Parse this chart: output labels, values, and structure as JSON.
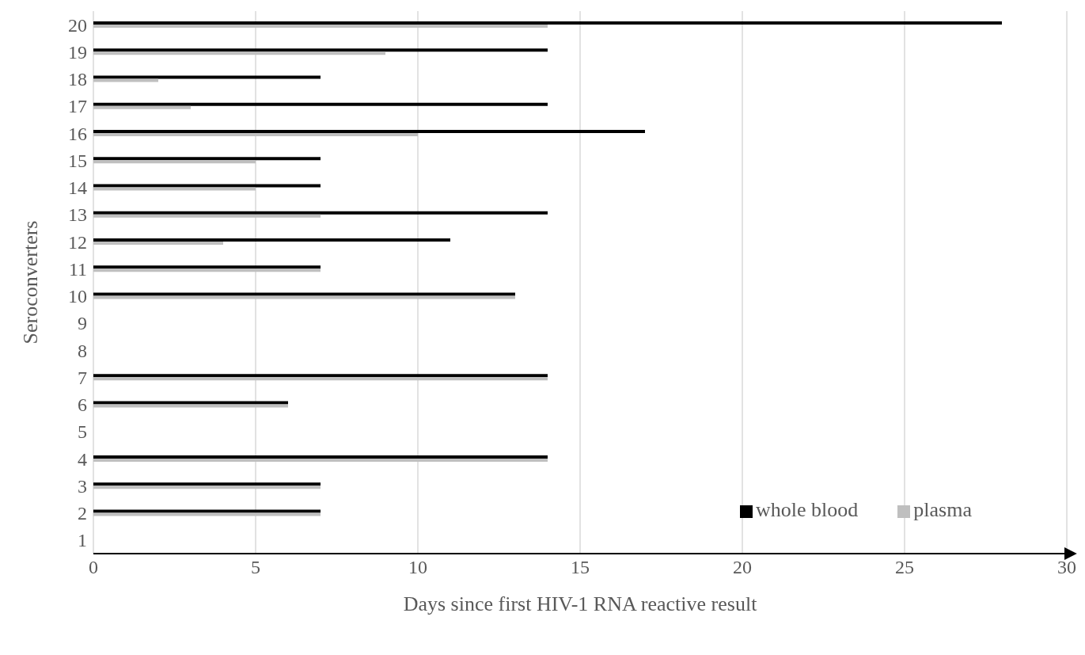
{
  "chart_data": {
    "type": "bar",
    "orientation": "horizontal",
    "xlabel": "Days since first HIV-1 RNA reactive result",
    "ylabel": "Seroconverters",
    "categories": [
      "20",
      "19",
      "18",
      "17",
      "16",
      "15",
      "14",
      "13",
      "12",
      "11",
      "10",
      "9",
      "8",
      "7",
      "6",
      "5",
      "4",
      "3",
      "2",
      "1"
    ],
    "series": [
      {
        "name": "whole blood",
        "color": "#000000",
        "values": [
          28,
          14,
          7,
          14,
          17,
          7,
          7,
          14,
          11,
          7,
          13,
          null,
          null,
          14,
          6,
          null,
          14,
          7,
          7,
          null
        ]
      },
      {
        "name": "plasma",
        "color": "#bfbfbf",
        "values": [
          14,
          9,
          2,
          3,
          10,
          5,
          5,
          7,
          4,
          7,
          13,
          null,
          null,
          14,
          6,
          null,
          14,
          7,
          7,
          null
        ]
      }
    ],
    "xlim": [
      0,
      30
    ],
    "xticks": [
      0,
      5,
      10,
      15,
      20,
      25,
      30
    ],
    "grid": "x",
    "legend": "bottom right"
  }
}
